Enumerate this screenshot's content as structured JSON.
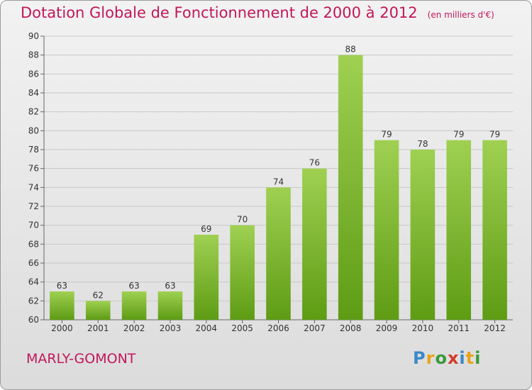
{
  "header": {
    "title": "Dotation Globale de Fonctionnement de 2000 à 2012",
    "subtitle": "(en milliers d'€)"
  },
  "commune": "MARLY-GOMONT",
  "logo": {
    "text": "Proxiti",
    "letters": [
      "P",
      "r",
      "o",
      "x",
      "i",
      "t",
      "i"
    ]
  },
  "colors": {
    "accent": "#c0185a",
    "bar_top": "#9fd052",
    "bar_bottom": "#5e9c14"
  },
  "chart_data": {
    "type": "bar",
    "title": "Dotation Globale de Fonctionnement de 2000 à 2012",
    "subtitle": "(en milliers d'€)",
    "xlabel": "",
    "ylabel": "",
    "categories": [
      "2000",
      "2001",
      "2002",
      "2003",
      "2004",
      "2005",
      "2006",
      "2007",
      "2008",
      "2009",
      "2010",
      "2011",
      "2012"
    ],
    "values": [
      63,
      62,
      63,
      63,
      69,
      70,
      74,
      76,
      88,
      79,
      78,
      79,
      79
    ],
    "ylim": [
      60,
      90
    ],
    "yticks": [
      60,
      62,
      64,
      66,
      68,
      70,
      72,
      74,
      76,
      78,
      80,
      82,
      84,
      86,
      88,
      90
    ],
    "grid": true,
    "legend": "none"
  }
}
